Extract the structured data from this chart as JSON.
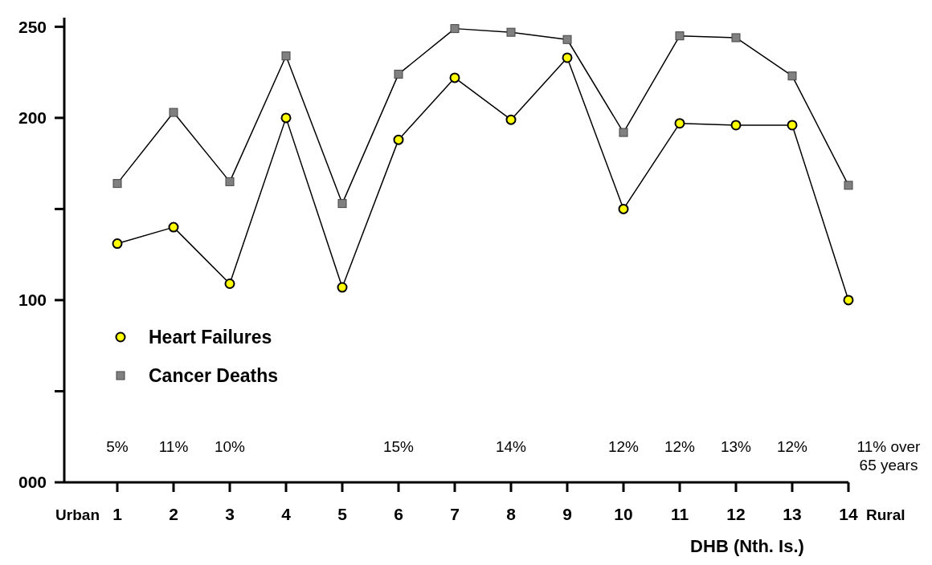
{
  "chart_data": {
    "type": "line",
    "xlabel": "DHB (Nth. Is.)",
    "categories": [
      "1",
      "2",
      "3",
      "4",
      "5",
      "6",
      "7",
      "8",
      "9",
      "10",
      "11",
      "12",
      "13",
      "14"
    ],
    "series": [
      {
        "name": "Heart Failures",
        "color": "#ffff00",
        "marker": "circle",
        "values": [
          131,
          140,
          109,
          200,
          107,
          188,
          222,
          199,
          233,
          150,
          197,
          196,
          196,
          100
        ]
      },
      {
        "name": "Cancer Deaths",
        "color": "#808080",
        "marker": "square",
        "values": [
          164,
          203,
          165,
          234,
          153,
          224,
          249,
          247,
          243,
          192,
          245,
          244,
          223,
          163
        ]
      }
    ],
    "ylim": [
      0,
      255
    ],
    "yticks": [
      {
        "value": 0,
        "label": "000"
      },
      {
        "value": 50,
        "label": null
      },
      100,
      {
        "value": 150,
        "label": null
      },
      200,
      250
    ],
    "grid": false,
    "legend": "left",
    "annotations": [
      "Urban",
      "Rural",
      "5%",
      "11%",
      "10%",
      "15%",
      "14%",
      "12%",
      "12%",
      "13%",
      "12%",
      "11% over 65 years"
    ]
  }
}
